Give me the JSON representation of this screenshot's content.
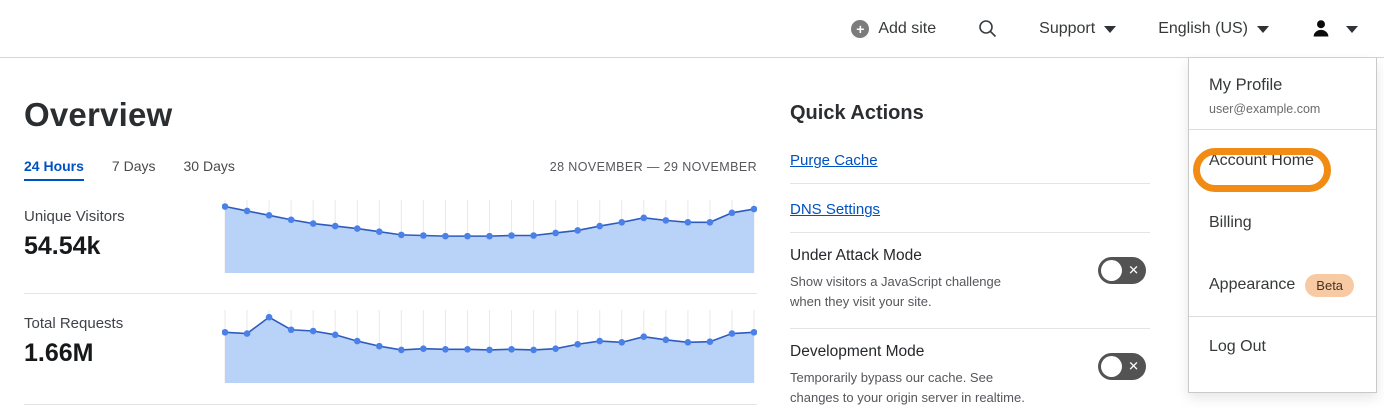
{
  "header": {
    "add_site_label": "Add site",
    "support_label": "Support",
    "language_label": "English (US)"
  },
  "main": {
    "title": "Overview",
    "tabs": [
      {
        "label": "24 Hours",
        "active": true
      },
      {
        "label": "7 Days",
        "active": false
      },
      {
        "label": "30 Days",
        "active": false
      }
    ],
    "date_range": "28 NOVEMBER — 29 NOVEMBER",
    "metrics": [
      {
        "label": "Unique Visitors",
        "value": "54.54k"
      },
      {
        "label": "Total Requests",
        "value": "1.66M"
      }
    ]
  },
  "quick_actions": {
    "title": "Quick Actions",
    "links": [
      {
        "label": "Purge Cache"
      },
      {
        "label": "DNS Settings"
      }
    ],
    "toggles": [
      {
        "title": "Under Attack Mode",
        "description": "Show visitors a JavaScript challenge when they visit your site.",
        "state": "off"
      },
      {
        "title": "Development Mode",
        "description": "Temporarily bypass our cache. See changes to your origin server in realtime.",
        "state": "off"
      }
    ],
    "toggle_x_glyph": "✕"
  },
  "user_menu": {
    "profile_label": "My Profile",
    "email": "user@example.com",
    "items": [
      {
        "label": "Account Home",
        "highlighted": true
      },
      {
        "label": "Billing"
      },
      {
        "label": "Appearance",
        "badge": "Beta"
      },
      {
        "label": "Log Out"
      }
    ],
    "highlight_annotation_color": "#f18b13"
  },
  "colors": {
    "link_blue": "#0051c3",
    "chart_fill": "#b9d2f8",
    "chart_line": "#2e5cbe",
    "chart_marker": "#4a80e8",
    "chart_grid": "#e9e9e9",
    "toggle_bg": "#535353",
    "beta_badge_bg": "#f7caa4"
  },
  "chart_data": [
    {
      "type": "area",
      "title": "Unique Visitors",
      "total_label": "54.54k",
      "x_range": "28 November — 29 November (24 hours)",
      "axis_labels_shown": false,
      "grid": "vertical",
      "values_normalized": [
        0.96,
        0.89,
        0.82,
        0.75,
        0.69,
        0.65,
        0.61,
        0.56,
        0.51,
        0.5,
        0.49,
        0.49,
        0.49,
        0.5,
        0.5,
        0.54,
        0.58,
        0.65,
        0.71,
        0.78,
        0.74,
        0.71,
        0.71,
        0.86,
        0.92
      ],
      "colors": {
        "fill": "#b9d2f8",
        "line": "#2e5cbe",
        "marker": "#4a80e8",
        "grid": "#e9e9e9"
      }
    },
    {
      "type": "area",
      "title": "Total Requests",
      "total_label": "1.66M",
      "x_range": "28 November — 29 November (24 hours)",
      "axis_labels_shown": false,
      "grid": "vertical",
      "values_normalized": [
        0.71,
        0.69,
        0.95,
        0.75,
        0.73,
        0.67,
        0.57,
        0.49,
        0.43,
        0.45,
        0.44,
        0.44,
        0.43,
        0.44,
        0.43,
        0.45,
        0.52,
        0.57,
        0.55,
        0.64,
        0.59,
        0.55,
        0.56,
        0.69,
        0.71
      ],
      "colors": {
        "fill": "#b9d2f8",
        "line": "#2e5cbe",
        "marker": "#4a80e8",
        "grid": "#e9e9e9"
      }
    }
  ]
}
